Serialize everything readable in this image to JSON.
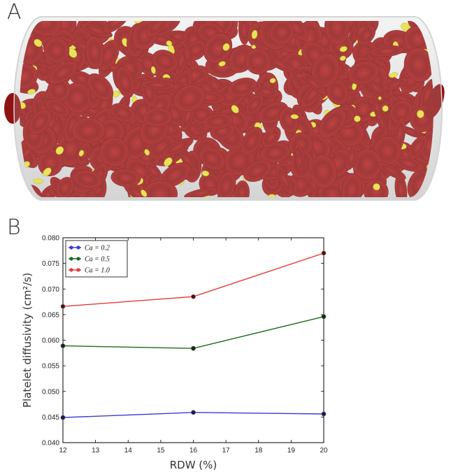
{
  "panel_a": {
    "label": "A"
  },
  "panel_b": {
    "label": "B"
  },
  "colors": {
    "rbc": "#a31515",
    "platelet": "#e6e233",
    "vessel": "#e8e8e8"
  },
  "chart_data": {
    "type": "line",
    "xlabel": "RDW (%)",
    "ylabel": "Platelet diffusivity (cm²/s)",
    "x": [
      12,
      16,
      20
    ],
    "xlim": [
      12,
      20
    ],
    "ylim": [
      0.04,
      0.08
    ],
    "xticks": [
      "12",
      "13",
      "14",
      "15",
      "16",
      "17",
      "18",
      "19",
      "20"
    ],
    "yticks": [
      "0.040",
      "0.045",
      "0.050",
      "0.055",
      "0.060",
      "0.065",
      "0.070",
      "0.075",
      "0.080"
    ],
    "legend_position": "top-left",
    "series": [
      {
        "name": "Ca = 0.2",
        "color": "#3b3bd6",
        "values": [
          0.0449,
          0.0459,
          0.0456
        ]
      },
      {
        "name": "Ca = 0.5",
        "color": "#1f6b1f",
        "values": [
          0.0589,
          0.0584,
          0.0646
        ]
      },
      {
        "name": "Ca = 1.0",
        "color": "#e33b3b",
        "values": [
          0.0666,
          0.0685,
          0.077
        ]
      }
    ]
  }
}
